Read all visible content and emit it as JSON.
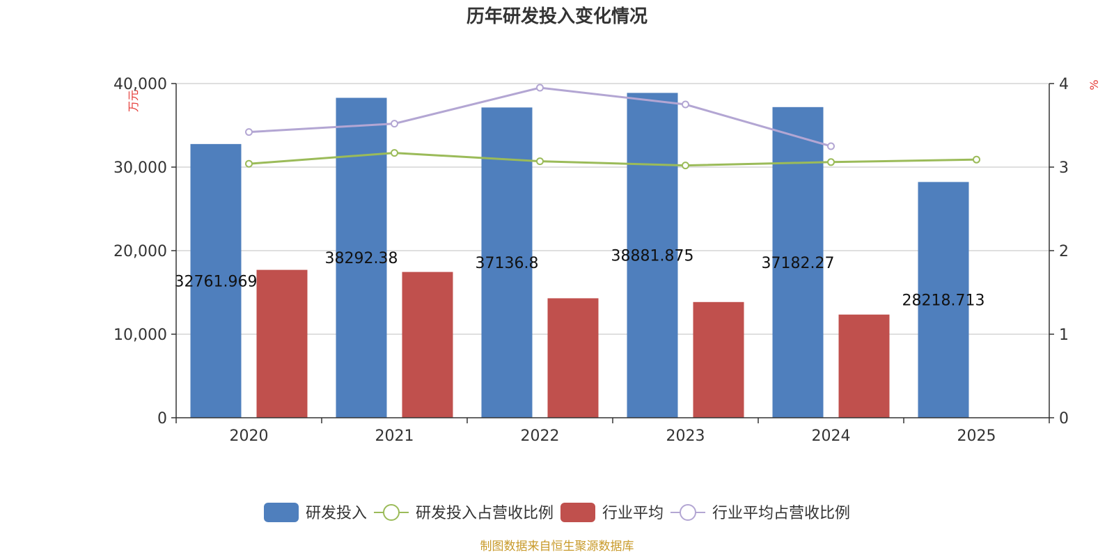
{
  "chart_data": {
    "type": "bar",
    "title": "历年研发投入变化情况",
    "categories": [
      "2020",
      "2021",
      "2022",
      "2023",
      "2024",
      "2025"
    ],
    "y_left": {
      "unit": "万元",
      "ylim": [
        0,
        40000
      ],
      "ticks": [
        "0",
        "10,000",
        "20,000",
        "30,000",
        "40,000"
      ]
    },
    "y_right": {
      "unit": "%",
      "ylim": [
        0,
        4
      ],
      "ticks": [
        "0",
        "1",
        "2",
        "3",
        "4"
      ]
    },
    "series": [
      {
        "name": "研发投入",
        "kind": "bar",
        "axis": "left",
        "color": "#4f7fbd",
        "values": [
          32761.969,
          38292.38,
          37136.8,
          38881.875,
          37182.27,
          28218.713
        ],
        "labels": [
          "32761.969",
          "38292.38",
          "37136.8",
          "38881.875",
          "37182.27",
          "28218.713"
        ]
      },
      {
        "name": "研发投入占营收比例",
        "kind": "line",
        "axis": "right",
        "color": "#9bbb59",
        "values": [
          3.04,
          3.17,
          3.07,
          3.02,
          3.06,
          3.09
        ]
      },
      {
        "name": "行业平均",
        "kind": "bar",
        "axis": "left",
        "color": "#c0504d",
        "values": [
          17700,
          17450,
          14300,
          13850,
          12350,
          null
        ]
      },
      {
        "name": "行业平均占营收比例",
        "kind": "line",
        "axis": "right",
        "color": "#b3a6d3",
        "values": [
          3.42,
          3.52,
          3.95,
          3.75,
          3.25,
          null
        ]
      }
    ],
    "grid": true,
    "legend_position": "bottom",
    "source": "制图数据来自恒生聚源数据库"
  }
}
